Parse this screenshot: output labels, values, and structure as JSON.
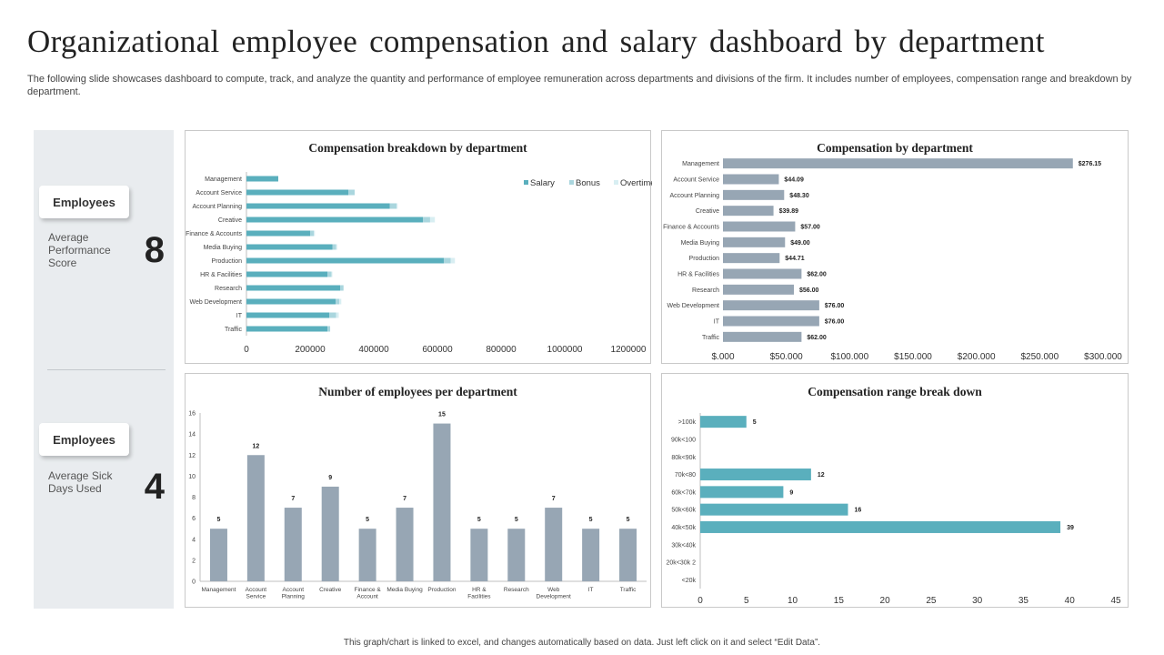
{
  "page": {
    "title": "Organizational employee compensation and salary dashboard by department",
    "subtitle": "The following slide showcases dashboard to compute, track, and analyze the quantity and performance of employee remuneration across departments and divisions of the firm. It includes number of employees, compensation range and breakdown by department.",
    "footer": "This graph/chart is linked to excel, and changes automatically based on data. Just left click on it and select “Edit Data”."
  },
  "sidebar": {
    "cards": [
      {
        "pill": "Employees",
        "label": "Average Performance Score",
        "value": "8"
      },
      {
        "pill": "Employees",
        "label": "Average Sick Days Used",
        "value": "4"
      }
    ]
  },
  "colors": {
    "teal": "#5aafbd",
    "bonus": "#aad6de",
    "overtime": "#d8eef2",
    "slate": "#97a6b4"
  },
  "chart_data": [
    {
      "type": "bar",
      "orientation": "horizontal",
      "stacked": true,
      "title": "Compensation breakdown by department",
      "categories": [
        "Management",
        "Account Service",
        "Account Planning",
        "Creative",
        "Finance & Accounts",
        "Media Buying",
        "Production",
        "HR & Facilities",
        "Research",
        "Web Development",
        "IT",
        "Traffic"
      ],
      "series": [
        {
          "name": "Salary",
          "values": [
            100000,
            320000,
            450000,
            555000,
            200000,
            270000,
            620000,
            255000,
            295000,
            280000,
            260000,
            255000
          ]
        },
        {
          "name": "Bonus",
          "values": [
            0,
            20000,
            22000,
            22000,
            12000,
            12000,
            22000,
            12000,
            10000,
            12000,
            22000,
            8000
          ]
        },
        {
          "name": "Overtime",
          "values": [
            0,
            0,
            3000,
            15000,
            3000,
            3000,
            13000,
            3000,
            0,
            6000,
            8000,
            0
          ]
        }
      ],
      "xticks": [
        "0",
        "200000",
        "400000",
        "600000",
        "800000",
        "1000000",
        "1200000"
      ],
      "xlim": [
        0,
        1200000
      ],
      "legend": "top-right"
    },
    {
      "type": "bar",
      "orientation": "horizontal",
      "title": "Compensation by department",
      "categories": [
        "Management",
        "Account Service",
        "Account Planning",
        "Creative",
        "Finance & Accounts",
        "Media Buying",
        "Production",
        "HR & Facilities",
        "Research",
        "Web Development",
        "IT",
        "Traffic"
      ],
      "values": [
        276.15,
        44.09,
        48.3,
        39.89,
        57.0,
        49.0,
        44.71,
        62.0,
        56.0,
        76.0,
        76.0,
        62.0
      ],
      "data_labels": [
        "$276.15",
        "$44.09",
        "$48.30",
        "$39.89",
        "$57.00",
        "$49.00",
        "$44.71",
        "$62.00",
        "$56.00",
        "$76.00",
        "$76.00",
        "$62.00"
      ],
      "xticks": [
        "$.000",
        "$50.000",
        "$100.000",
        "$150.000",
        "$200.000",
        "$250.000",
        "$300.000"
      ],
      "xlim": [
        0,
        300
      ]
    },
    {
      "type": "bar",
      "orientation": "vertical",
      "title": "Number of employees per department",
      "categories": [
        "Management",
        "Account Service",
        "Account Planning",
        "Creative",
        "Finance & Account",
        "Media Buying",
        "Production",
        "HR & Facilities",
        "Research",
        "Web Development",
        "IT",
        "Traffic"
      ],
      "values": [
        5,
        12,
        7,
        9,
        5,
        7,
        15,
        5,
        5,
        7,
        5,
        5
      ],
      "yticks": [
        "0",
        "2",
        "4",
        "6",
        "8",
        "10",
        "12",
        "14",
        "16"
      ],
      "ylim": [
        0,
        16
      ]
    },
    {
      "type": "bar",
      "orientation": "horizontal",
      "title": "Compensation range break down",
      "categories": [
        ">100k",
        "90k<100",
        "80k<90k",
        "70k<80",
        "60k<70k",
        "50k<60k",
        "40k<50k",
        "30k<40k",
        "20k<30k 2",
        "<20k"
      ],
      "values": [
        5,
        0,
        0,
        12,
        9,
        16,
        39,
        0,
        0,
        0
      ],
      "data_labels": [
        "5",
        "",
        "",
        "12",
        "9",
        "16",
        "39",
        "",
        "",
        ""
      ],
      "xticks": [
        "0",
        "5",
        "10",
        "15",
        "20",
        "25",
        "30",
        "35",
        "40",
        "45"
      ],
      "xlim": [
        0,
        45
      ]
    }
  ]
}
